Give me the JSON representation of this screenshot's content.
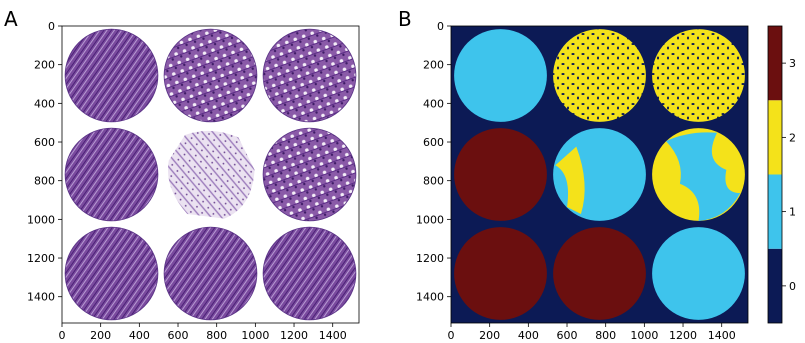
{
  "panels": {
    "a": {
      "label": "A",
      "xticks": [
        "0",
        "200",
        "400",
        "600",
        "800",
        "1000",
        "1200",
        "1400"
      ],
      "yticks": [
        "0",
        "200",
        "400",
        "600",
        "800",
        "1000",
        "1200",
        "1400"
      ]
    },
    "b": {
      "label": "B",
      "xticks": [
        "0",
        "200",
        "400",
        "600",
        "800",
        "1000",
        "1200",
        "1400"
      ],
      "yticks": [
        "0",
        "200",
        "400",
        "600",
        "800",
        "1000",
        "1200",
        "1400"
      ]
    }
  },
  "colorbar": {
    "ticks": [
      "0",
      "1",
      "2",
      "3"
    ],
    "colors": [
      "#0c1a55",
      "#3ec4ec",
      "#f4e21a",
      "#6b0f0f"
    ]
  },
  "chart_data": [
    {
      "type": "image",
      "panel": "A",
      "xlim": [
        0,
        1536
      ],
      "ylim": [
        1536,
        0
      ],
      "xticks": [
        0,
        200,
        400,
        600,
        800,
        1000,
        1200,
        1400
      ],
      "yticks": [
        0,
        200,
        400,
        600,
        800,
        1000,
        1200,
        1400
      ],
      "content": "3x3 grid of H&E stained tissue cores",
      "grid_size": [
        3,
        3
      ],
      "cores": [
        {
          "row": 0,
          "col": 0,
          "stain": "H&E",
          "appearance": "dense"
        },
        {
          "row": 0,
          "col": 1,
          "stain": "H&E",
          "appearance": "glandular"
        },
        {
          "row": 0,
          "col": 2,
          "stain": "H&E",
          "appearance": "glandular"
        },
        {
          "row": 1,
          "col": 0,
          "stain": "H&E",
          "appearance": "dense"
        },
        {
          "row": 1,
          "col": 1,
          "stain": "H&E",
          "appearance": "sparse/fragmented"
        },
        {
          "row": 1,
          "col": 2,
          "stain": "H&E",
          "appearance": "glandular"
        },
        {
          "row": 2,
          "col": 0,
          "stain": "H&E",
          "appearance": "dense"
        },
        {
          "row": 2,
          "col": 1,
          "stain": "H&E",
          "appearance": "dense"
        },
        {
          "row": 2,
          "col": 2,
          "stain": "H&E",
          "appearance": "dense"
        }
      ]
    },
    {
      "type": "heatmap",
      "panel": "B",
      "xlim": [
        0,
        1536
      ],
      "ylim": [
        1536,
        0
      ],
      "xticks": [
        0,
        200,
        400,
        600,
        800,
        1000,
        1200,
        1400
      ],
      "yticks": [
        0,
        200,
        400,
        600,
        800,
        1000,
        1200,
        1400
      ],
      "background_class": 0,
      "classes": [
        0,
        1,
        2,
        3
      ],
      "class_colors": [
        "#0c1a55",
        "#3ec4ec",
        "#f4e21a",
        "#6b0f0f"
      ],
      "colorbar_ticks": [
        0,
        1,
        2,
        3
      ],
      "cores": [
        {
          "row": 0,
          "col": 0,
          "dominant_class": 1,
          "secondary_class": null
        },
        {
          "row": 0,
          "col": 1,
          "dominant_class": 2,
          "secondary_class": 0
        },
        {
          "row": 0,
          "col": 2,
          "dominant_class": 2,
          "secondary_class": 0
        },
        {
          "row": 1,
          "col": 0,
          "dominant_class": 3,
          "secondary_class": null
        },
        {
          "row": 1,
          "col": 1,
          "dominant_class": 1,
          "secondary_class": 2
        },
        {
          "row": 1,
          "col": 2,
          "dominant_class": 2,
          "secondary_class": 1
        },
        {
          "row": 2,
          "col": 0,
          "dominant_class": 3,
          "secondary_class": null
        },
        {
          "row": 2,
          "col": 1,
          "dominant_class": 3,
          "secondary_class": null
        },
        {
          "row": 2,
          "col": 2,
          "dominant_class": 1,
          "secondary_class": null
        }
      ]
    }
  ]
}
